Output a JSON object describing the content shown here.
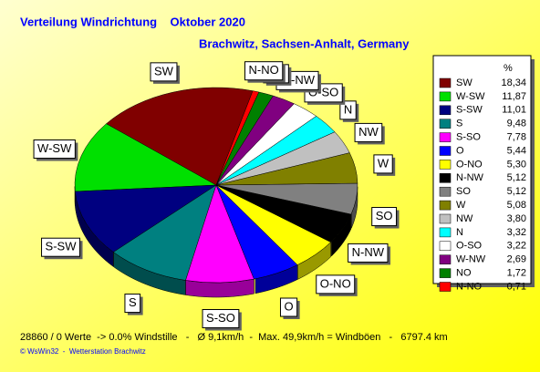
{
  "chart_data": {
    "type": "pie",
    "title": "Verteilung Windrichtung    Oktober 2020",
    "subtitle": "Brachwitz, Sachsen-Anhalt, Germany",
    "legend_header": "%",
    "categories": [
      "SW",
      "W-SW",
      "S-SW",
      "S",
      "S-SO",
      "O",
      "O-NO",
      "N-NW",
      "SO",
      "W",
      "NW",
      "N",
      "O-SO",
      "W-NW",
      "NO",
      "N-NO"
    ],
    "values": [
      18.34,
      11.87,
      11.01,
      9.48,
      7.78,
      5.44,
      5.3,
      5.12,
      5.12,
      5.08,
      3.8,
      3.32,
      3.22,
      2.69,
      1.72,
      0.71
    ],
    "value_labels": [
      "18,34",
      "11,87",
      "11,01",
      "9,48",
      "7,78",
      "5,44",
      "5,30",
      "5,12",
      "5,12",
      "5,08",
      "3,80",
      "3,32",
      "3,22",
      "2,69",
      "1,72",
      "0,71"
    ],
    "colors": [
      "#800000",
      "#00e000",
      "#000080",
      "#008080",
      "#ff00ff",
      "#0000ff",
      "#ffff00",
      "#000000",
      "#808080",
      "#808000",
      "#c0c0c0",
      "#00ffff",
      "#ffffff",
      "#800080",
      "#008000",
      "#ff0000"
    ],
    "footer": "28860 / 0 Werte  -> 0.0% Windstille   -   Ø 9,1km/h  -  Max. 49,9km/h = Windböen   -   6797.4 km",
    "credit": "© WsWin32  -  Wetterstation Brachwitz"
  }
}
